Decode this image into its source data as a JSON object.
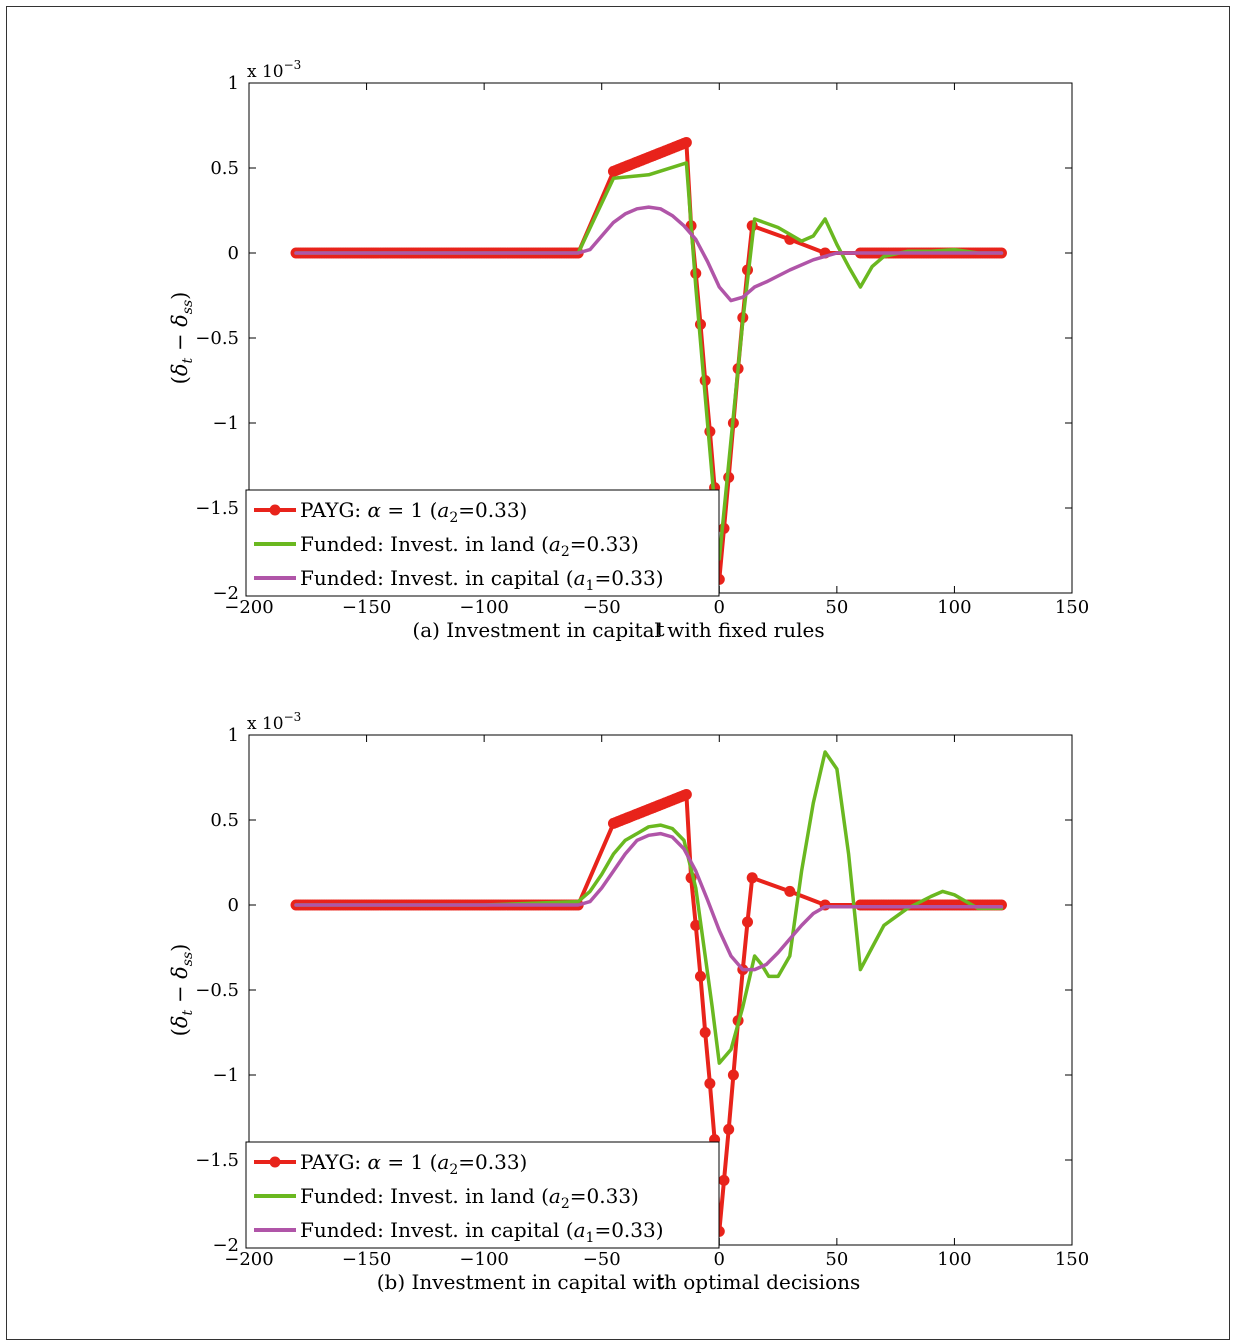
{
  "chart_data": [
    {
      "type": "line",
      "caption": "(a) Investment in capital with fixed rules",
      "xlabel": "t",
      "ylabel": "(δt − δss)",
      "ylabel_parts": {
        "open": "(",
        "delta1": "δ",
        "sub1": "t",
        "minus": " − ",
        "delta2": "δ",
        "sub2": "ss",
        "close": ")"
      },
      "multiplier": {
        "base": "x 10",
        "exp": "−3"
      },
      "xlim": [
        -200,
        150
      ],
      "ylim": [
        -2,
        1
      ],
      "xticks": [
        -200,
        -150,
        -100,
        -50,
        0,
        50,
        100,
        150
      ],
      "xtick_labels": [
        "−200",
        "−150",
        "−100",
        "−50",
        "0",
        "50",
        "100",
        "150"
      ],
      "yticks": [
        -2,
        -1.5,
        -1,
        -0.5,
        0,
        0.5,
        1
      ],
      "ytick_labels": [
        "−2",
        "−1.5",
        "−1",
        "−0.5",
        "0",
        "0.5",
        "1"
      ],
      "grid": false,
      "legend_position": "bottom-left",
      "series": [
        {
          "name": "PAYG: α = 1 (a2=0.33)",
          "legend": {
            "pre": "PAYG: ",
            "sym": "α",
            "mid": " = 1 (",
            "var": "a",
            "sub": "2",
            "post": "=0.33)"
          },
          "color": "#e8231b",
          "markers": true,
          "x": [
            -180,
            -60,
            -45,
            -14,
            -12,
            -10,
            -8,
            -6,
            -4,
            -2,
            0,
            2,
            4,
            6,
            8,
            10,
            12,
            14,
            30,
            45,
            60,
            120
          ],
          "y": [
            0,
            0,
            0.48,
            0.65,
            0.16,
            -0.12,
            -0.42,
            -0.75,
            -1.05,
            -1.38,
            -1.92,
            -1.62,
            -1.32,
            -1.0,
            -0.68,
            -0.38,
            -0.1,
            0.16,
            0.08,
            0,
            0,
            0
          ]
        },
        {
          "name": "Funded: Invest. in land (a2=0.33)",
          "legend": {
            "pre": "Funded: Invest. in land (",
            "var": "a",
            "sub": "2",
            "post": "=0.33)"
          },
          "color": "#6ab820",
          "markers": false,
          "x": [
            -180,
            -60,
            -45,
            -30,
            -14,
            -10,
            -5,
            0,
            5,
            10,
            15,
            25,
            35,
            40,
            45,
            50,
            55,
            60,
            65,
            70,
            80,
            90,
            100,
            110,
            120
          ],
          "y": [
            0,
            0,
            0.44,
            0.46,
            0.53,
            -0.2,
            -1.0,
            -1.8,
            -1.1,
            -0.4,
            0.2,
            0.15,
            0.07,
            0.1,
            0.2,
            0.05,
            -0.08,
            -0.2,
            -0.08,
            -0.02,
            0.01,
            0.01,
            0.02,
            0,
            0
          ]
        },
        {
          "name": "Funded: Invest. in capital (a1=0.33)",
          "legend": {
            "pre": "Funded: Invest. in capital (",
            "var": "a",
            "sub": "1",
            "post": "=0.33)"
          },
          "color": "#b055a8",
          "markers": false,
          "x": [
            -180,
            -60,
            -55,
            -50,
            -45,
            -40,
            -35,
            -30,
            -25,
            -20,
            -15,
            -10,
            -5,
            0,
            5,
            10,
            15,
            20,
            30,
            40,
            50,
            60,
            80,
            100,
            120
          ],
          "y": [
            0,
            0,
            0.02,
            0.1,
            0.18,
            0.23,
            0.26,
            0.27,
            0.26,
            0.22,
            0.16,
            0.08,
            -0.05,
            -0.2,
            -0.28,
            -0.26,
            -0.2,
            -0.17,
            -0.1,
            -0.04,
            0,
            0,
            0,
            0,
            0
          ]
        }
      ]
    },
    {
      "type": "line",
      "caption": "(b) Investment in capital with optimal decisions",
      "xlabel": "t",
      "ylabel": "(δt − δss)",
      "ylabel_parts": {
        "open": "(",
        "delta1": "δ",
        "sub1": "t",
        "minus": " − ",
        "delta2": "δ",
        "sub2": "ss",
        "close": ")"
      },
      "multiplier": {
        "base": "x 10",
        "exp": "−3"
      },
      "xlim": [
        -200,
        150
      ],
      "ylim": [
        -2,
        1
      ],
      "xticks": [
        -200,
        -150,
        -100,
        -50,
        0,
        50,
        100,
        150
      ],
      "xtick_labels": [
        "−200",
        "−150",
        "−100",
        "−50",
        "0",
        "50",
        "100",
        "150"
      ],
      "yticks": [
        -2,
        -1.5,
        -1,
        -0.5,
        0,
        0.5,
        1
      ],
      "ytick_labels": [
        "−2",
        "−1.5",
        "−1",
        "−0.5",
        "0",
        "0.5",
        "1"
      ],
      "grid": false,
      "legend_position": "bottom-left",
      "series": [
        {
          "name": "PAYG: α = 1 (a2=0.33)",
          "legend": {
            "pre": "PAYG: ",
            "sym": "α",
            "mid": " = 1 (",
            "var": "a",
            "sub": "2",
            "post": "=0.33)"
          },
          "color": "#e8231b",
          "markers": true,
          "x": [
            -180,
            -60,
            -45,
            -14,
            -12,
            -10,
            -8,
            -6,
            -4,
            -2,
            0,
            2,
            4,
            6,
            8,
            10,
            12,
            14,
            30,
            45,
            60,
            120
          ],
          "y": [
            0,
            0,
            0.48,
            0.65,
            0.16,
            -0.12,
            -0.42,
            -0.75,
            -1.05,
            -1.38,
            -1.92,
            -1.62,
            -1.32,
            -1.0,
            -0.68,
            -0.38,
            -0.1,
            0.16,
            0.08,
            0,
            0,
            0
          ]
        },
        {
          "name": "Funded: Invest. in land (a2=0.33)",
          "legend": {
            "pre": "Funded: Invest. in land (",
            "var": "a",
            "sub": "2",
            "post": "=0.33)"
          },
          "color": "#6ab820",
          "markers": false,
          "x": [
            -180,
            -100,
            -60,
            -55,
            -50,
            -45,
            -40,
            -35,
            -30,
            -25,
            -20,
            -15,
            -10,
            -6,
            -3,
            0,
            5,
            10,
            15,
            18,
            21,
            25,
            30,
            35,
            40,
            45,
            50,
            55,
            60,
            65,
            70,
            80,
            90,
            95,
            100,
            110,
            120
          ],
          "y": [
            0,
            0,
            0.02,
            0.08,
            0.18,
            0.3,
            0.38,
            0.42,
            0.46,
            0.47,
            0.45,
            0.38,
            0.1,
            -0.3,
            -0.6,
            -0.93,
            -0.85,
            -0.6,
            -0.3,
            -0.35,
            -0.42,
            -0.42,
            -0.3,
            0.2,
            0.6,
            0.9,
            0.8,
            0.3,
            -0.38,
            -0.25,
            -0.12,
            -0.02,
            0.05,
            0.08,
            0.06,
            -0.02,
            -0.02
          ]
        },
        {
          "name": "Funded: Invest. in capital (a1=0.33)",
          "legend": {
            "pre": "Funded: Invest. in capital (",
            "var": "a",
            "sub": "1",
            "post": "=0.33)"
          },
          "color": "#b055a8",
          "markers": false,
          "x": [
            -180,
            -60,
            -55,
            -50,
            -45,
            -40,
            -35,
            -30,
            -25,
            -20,
            -15,
            -10,
            -5,
            0,
            5,
            10,
            15,
            20,
            25,
            30,
            35,
            40,
            45,
            50,
            60,
            80,
            100,
            120
          ],
          "y": [
            0,
            0,
            0.02,
            0.1,
            0.2,
            0.3,
            0.38,
            0.41,
            0.42,
            0.4,
            0.33,
            0.2,
            0.03,
            -0.15,
            -0.3,
            -0.38,
            -0.38,
            -0.35,
            -0.28,
            -0.2,
            -0.12,
            -0.05,
            -0.01,
            -0.01,
            -0.01,
            -0.01,
            -0.01,
            -0.01
          ]
        }
      ]
    }
  ]
}
